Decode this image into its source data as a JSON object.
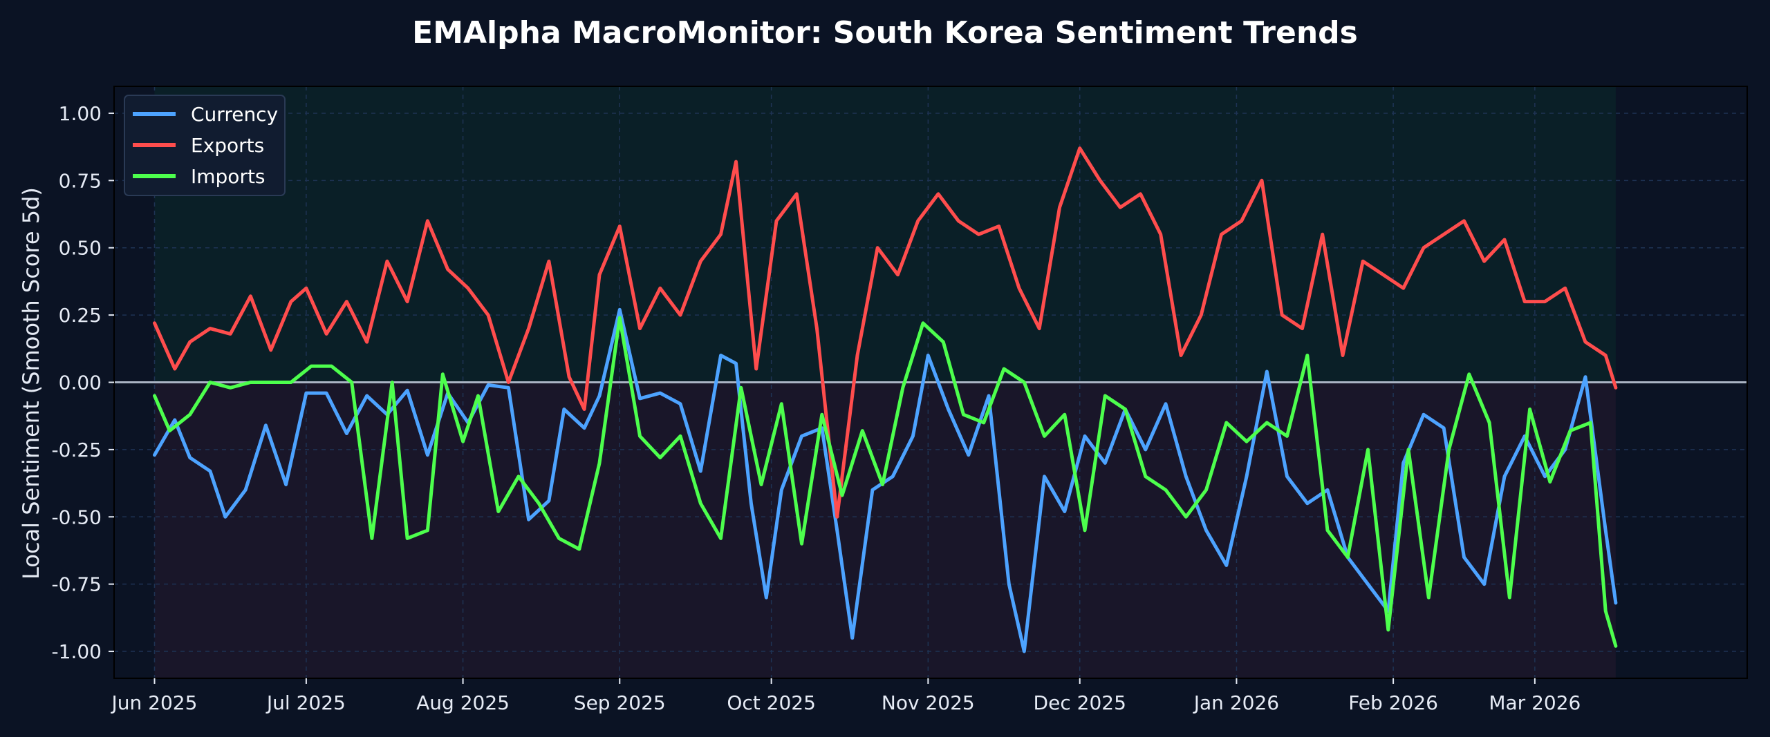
{
  "chart_data": {
    "type": "line",
    "title": "EMAlpha MacroMonitor: South Korea Sentiment Trends",
    "xlabel": "",
    "ylabel": "Local Sentiment (Smooth Score 5d)",
    "ylim": [
      -1.1,
      1.1
    ],
    "y_ticks": [
      1.0,
      0.75,
      0.5,
      0.25,
      0.0,
      -0.25,
      -0.5,
      -0.75,
      -1.0
    ],
    "y_tick_labels": [
      "1.00",
      "0.75",
      "0.50",
      "0.25",
      "0.00",
      "-0.25",
      "-0.50",
      "-0.75",
      "-1.00"
    ],
    "x_range": [
      "2025-05-24",
      "2026-04-12"
    ],
    "x_ticks": [
      "2025-06-01",
      "2025-07-01",
      "2025-08-01",
      "2025-09-01",
      "2025-10-01",
      "2025-11-01",
      "2025-12-01",
      "2026-01-01",
      "2026-02-01",
      "2026-03-01"
    ],
    "x_tick_labels": [
      "Jun 2025",
      "Jul 2025",
      "Aug 2025",
      "Sep 2025",
      "Oct 2025",
      "Nov 2025",
      "Dec 2025",
      "Jan 2026",
      "Feb 2026",
      "Mar 2026"
    ],
    "grid": true,
    "zero_line": true,
    "legend_position": "top-left",
    "background": "#0b1324",
    "positive_region_color": "#0a1f27",
    "negative_region_color": "#191629",
    "series": [
      {
        "name": "Currency",
        "color": "#4da3ff",
        "x": [
          "2025-06-01",
          "2025-06-05",
          "2025-06-08",
          "2025-06-12",
          "2025-06-15",
          "2025-06-19",
          "2025-06-23",
          "2025-06-27",
          "2025-07-01",
          "2025-07-05",
          "2025-07-09",
          "2025-07-13",
          "2025-07-17",
          "2025-07-21",
          "2025-07-25",
          "2025-07-29",
          "2025-08-02",
          "2025-08-06",
          "2025-08-10",
          "2025-08-14",
          "2025-08-18",
          "2025-08-21",
          "2025-08-25",
          "2025-08-28",
          "2025-09-01",
          "2025-09-05",
          "2025-09-09",
          "2025-09-13",
          "2025-09-17",
          "2025-09-21",
          "2025-09-24",
          "2025-09-27",
          "2025-09-30",
          "2025-10-03",
          "2025-10-07",
          "2025-10-11",
          "2025-10-14",
          "2025-10-17",
          "2025-10-21",
          "2025-10-25",
          "2025-10-29",
          "2025-11-01",
          "2025-11-05",
          "2025-11-09",
          "2025-11-13",
          "2025-11-17",
          "2025-11-20",
          "2025-11-24",
          "2025-11-28",
          "2025-12-02",
          "2025-12-06",
          "2025-12-10",
          "2025-12-14",
          "2025-12-18",
          "2025-12-22",
          "2025-12-26",
          "2025-12-30",
          "2026-01-03",
          "2026-01-07",
          "2026-01-11",
          "2026-01-15",
          "2026-01-19",
          "2026-01-23",
          "2026-01-27",
          "2026-01-31",
          "2026-02-03",
          "2026-02-07",
          "2026-02-11",
          "2026-02-15",
          "2026-02-19",
          "2026-02-23",
          "2026-02-27",
          "2026-03-03",
          "2026-03-07",
          "2026-03-11",
          "2026-03-15",
          "2026-03-17"
        ],
        "values": [
          -0.27,
          -0.14,
          -0.28,
          -0.33,
          -0.5,
          -0.4,
          -0.16,
          -0.38,
          -0.04,
          -0.04,
          -0.19,
          -0.05,
          -0.12,
          -0.03,
          -0.27,
          -0.04,
          -0.15,
          -0.01,
          -0.02,
          -0.51,
          -0.44,
          -0.1,
          -0.17,
          -0.05,
          0.27,
          -0.06,
          -0.04,
          -0.08,
          -0.33,
          0.1,
          0.07,
          -0.45,
          -0.8,
          -0.4,
          -0.2,
          -0.17,
          -0.55,
          -0.95,
          -0.4,
          -0.35,
          -0.2,
          0.1,
          -0.1,
          -0.27,
          -0.05,
          -0.75,
          -1.0,
          -0.35,
          -0.48,
          -0.2,
          -0.3,
          -0.1,
          -0.25,
          -0.08,
          -0.35,
          -0.55,
          -0.68,
          -0.35,
          0.04,
          -0.35,
          -0.45,
          -0.4,
          -0.65,
          -0.75,
          -0.85,
          -0.3,
          -0.12,
          -0.17,
          -0.65,
          -0.75,
          -0.35,
          -0.2,
          -0.35,
          -0.25,
          0.02,
          -0.55,
          -0.82
        ]
      },
      {
        "name": "Exports",
        "color": "#ff4d4d",
        "x": [
          "2025-06-01",
          "2025-06-05",
          "2025-06-08",
          "2025-06-12",
          "2025-06-16",
          "2025-06-20",
          "2025-06-24",
          "2025-06-28",
          "2025-07-01",
          "2025-07-05",
          "2025-07-09",
          "2025-07-13",
          "2025-07-17",
          "2025-07-21",
          "2025-07-25",
          "2025-07-29",
          "2025-08-02",
          "2025-08-06",
          "2025-08-10",
          "2025-08-14",
          "2025-08-18",
          "2025-08-22",
          "2025-08-25",
          "2025-08-28",
          "2025-09-01",
          "2025-09-05",
          "2025-09-09",
          "2025-09-13",
          "2025-09-17",
          "2025-09-21",
          "2025-09-24",
          "2025-09-28",
          "2025-10-02",
          "2025-10-06",
          "2025-10-10",
          "2025-10-14",
          "2025-10-18",
          "2025-10-22",
          "2025-10-26",
          "2025-10-30",
          "2025-11-03",
          "2025-11-07",
          "2025-11-11",
          "2025-11-15",
          "2025-11-19",
          "2025-11-23",
          "2025-11-27",
          "2025-12-01",
          "2025-12-05",
          "2025-12-09",
          "2025-12-13",
          "2025-12-17",
          "2025-12-21",
          "2025-12-25",
          "2025-12-29",
          "2026-01-02",
          "2026-01-06",
          "2026-01-10",
          "2026-01-14",
          "2026-01-18",
          "2026-01-22",
          "2026-01-26",
          "2026-01-30",
          "2026-02-03",
          "2026-02-07",
          "2026-02-11",
          "2026-02-15",
          "2026-02-19",
          "2026-02-23",
          "2026-02-27",
          "2026-03-03",
          "2026-03-07",
          "2026-03-11",
          "2026-03-15",
          "2026-03-17"
        ],
        "values": [
          0.22,
          0.05,
          0.15,
          0.2,
          0.18,
          0.32,
          0.12,
          0.3,
          0.35,
          0.18,
          0.3,
          0.15,
          0.45,
          0.3,
          0.6,
          0.42,
          0.35,
          0.25,
          0.0,
          0.2,
          0.45,
          0.02,
          -0.1,
          0.4,
          0.58,
          0.2,
          0.35,
          0.25,
          0.45,
          0.55,
          0.82,
          0.05,
          0.6,
          0.7,
          0.2,
          -0.5,
          0.1,
          0.5,
          0.4,
          0.6,
          0.7,
          0.6,
          0.55,
          0.58,
          0.35,
          0.2,
          0.65,
          0.87,
          0.75,
          0.65,
          0.7,
          0.55,
          0.1,
          0.25,
          0.55,
          0.6,
          0.75,
          0.25,
          0.2,
          0.55,
          0.1,
          0.45,
          0.4,
          0.35,
          0.5,
          0.55,
          0.6,
          0.45,
          0.53,
          0.3,
          0.3,
          0.35,
          0.15,
          0.1,
          -0.02
        ]
      },
      {
        "name": "Imports",
        "color": "#4dff4d",
        "x": [
          "2025-06-01",
          "2025-06-04",
          "2025-06-08",
          "2025-06-12",
          "2025-06-16",
          "2025-06-20",
          "2025-06-24",
          "2025-06-28",
          "2025-07-02",
          "2025-07-06",
          "2025-07-10",
          "2025-07-14",
          "2025-07-18",
          "2025-07-21",
          "2025-07-25",
          "2025-07-28",
          "2025-08-01",
          "2025-08-04",
          "2025-08-08",
          "2025-08-12",
          "2025-08-16",
          "2025-08-20",
          "2025-08-24",
          "2025-08-28",
          "2025-09-01",
          "2025-09-05",
          "2025-09-09",
          "2025-09-13",
          "2025-09-17",
          "2025-09-21",
          "2025-09-25",
          "2025-09-29",
          "2025-10-03",
          "2025-10-07",
          "2025-10-11",
          "2025-10-15",
          "2025-10-19",
          "2025-10-23",
          "2025-10-27",
          "2025-10-31",
          "2025-11-04",
          "2025-11-08",
          "2025-11-12",
          "2025-11-16",
          "2025-11-20",
          "2025-11-24",
          "2025-11-28",
          "2025-12-02",
          "2025-12-06",
          "2025-12-10",
          "2025-12-14",
          "2025-12-18",
          "2025-12-22",
          "2025-12-26",
          "2025-12-30",
          "2026-01-03",
          "2026-01-07",
          "2026-01-11",
          "2026-01-15",
          "2026-01-19",
          "2026-01-23",
          "2026-01-27",
          "2026-01-31",
          "2026-02-04",
          "2026-02-08",
          "2026-02-12",
          "2026-02-16",
          "2026-02-20",
          "2026-02-24",
          "2026-02-28",
          "2026-03-04",
          "2026-03-08",
          "2026-03-12",
          "2026-03-15",
          "2026-03-17"
        ],
        "values": [
          -0.05,
          -0.18,
          -0.12,
          0.0,
          -0.02,
          0.0,
          0.0,
          0.0,
          0.06,
          0.06,
          0.0,
          -0.58,
          0.0,
          -0.58,
          -0.55,
          0.03,
          -0.22,
          -0.05,
          -0.48,
          -0.35,
          -0.45,
          -0.58,
          -0.62,
          -0.3,
          0.24,
          -0.2,
          -0.28,
          -0.2,
          -0.45,
          -0.58,
          -0.02,
          -0.38,
          -0.08,
          -0.6,
          -0.12,
          -0.42,
          -0.18,
          -0.38,
          -0.02,
          0.22,
          0.15,
          -0.12,
          -0.15,
          0.05,
          0.0,
          -0.2,
          -0.12,
          -0.55,
          -0.05,
          -0.1,
          -0.35,
          -0.4,
          -0.5,
          -0.4,
          -0.15,
          -0.22,
          -0.15,
          -0.2,
          0.1,
          -0.55,
          -0.65,
          -0.25,
          -0.92,
          -0.25,
          -0.8,
          -0.25,
          0.03,
          -0.15,
          -0.8,
          -0.1,
          -0.37,
          -0.18,
          -0.15,
          -0.85,
          -0.98
        ]
      }
    ]
  }
}
